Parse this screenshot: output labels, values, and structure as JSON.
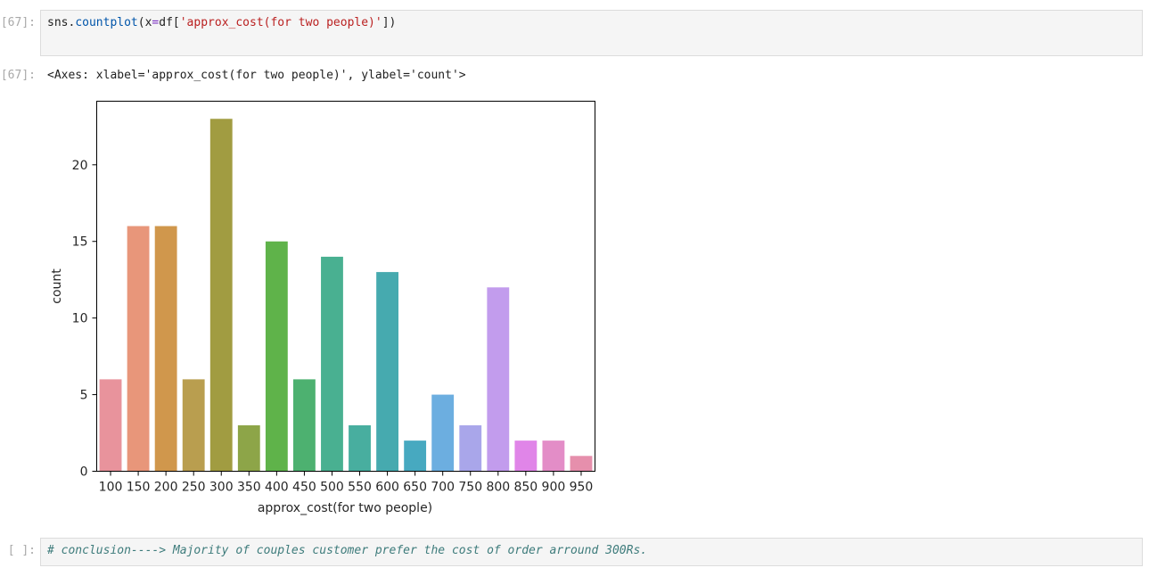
{
  "cell1": {
    "prompt": "[67]:",
    "code": {
      "fn_obj": "sns.",
      "fn_name": "countplot",
      "paren_open": "(",
      "arg_name": "x",
      "eq": "=",
      "df": "df[",
      "str": "'approx_cost(for two people)'",
      "close": "])"
    }
  },
  "output1": {
    "prompt": "[67]:",
    "text": "<Axes: xlabel='approx_cost(for two people)', ylabel='count'>"
  },
  "chart_data": {
    "type": "bar",
    "categories": [
      "100",
      "150",
      "200",
      "250",
      "300",
      "350",
      "400",
      "450",
      "500",
      "550",
      "600",
      "650",
      "700",
      "750",
      "800",
      "850",
      "900",
      "950"
    ],
    "values": [
      6,
      16,
      16,
      6,
      23,
      3,
      15,
      6,
      14,
      3,
      13,
      2,
      5,
      3,
      12,
      2,
      2,
      1
    ],
    "colors": [
      "#e8939c",
      "#e8967a",
      "#d0974c",
      "#b99e4f",
      "#a19c41",
      "#8da548",
      "#5fb34a",
      "#4db170",
      "#49b091",
      "#48ae9f",
      "#46aaaf",
      "#47a9c0",
      "#6caee0",
      "#a9a6ea",
      "#c29ced",
      "#e085e8",
      "#e38dc7",
      "#e68fac"
    ],
    "xlabel": "approx_cost(for two people)",
    "ylabel": "count",
    "yticks": [
      "0",
      "5",
      "10",
      "15",
      "20"
    ],
    "ylim": [
      0,
      24.15
    ],
    "grid": false
  },
  "cell2": {
    "prompt": "[ ]:",
    "code": "# conclusion----> Majority of couples customer prefer the cost of order arround 300Rs."
  }
}
